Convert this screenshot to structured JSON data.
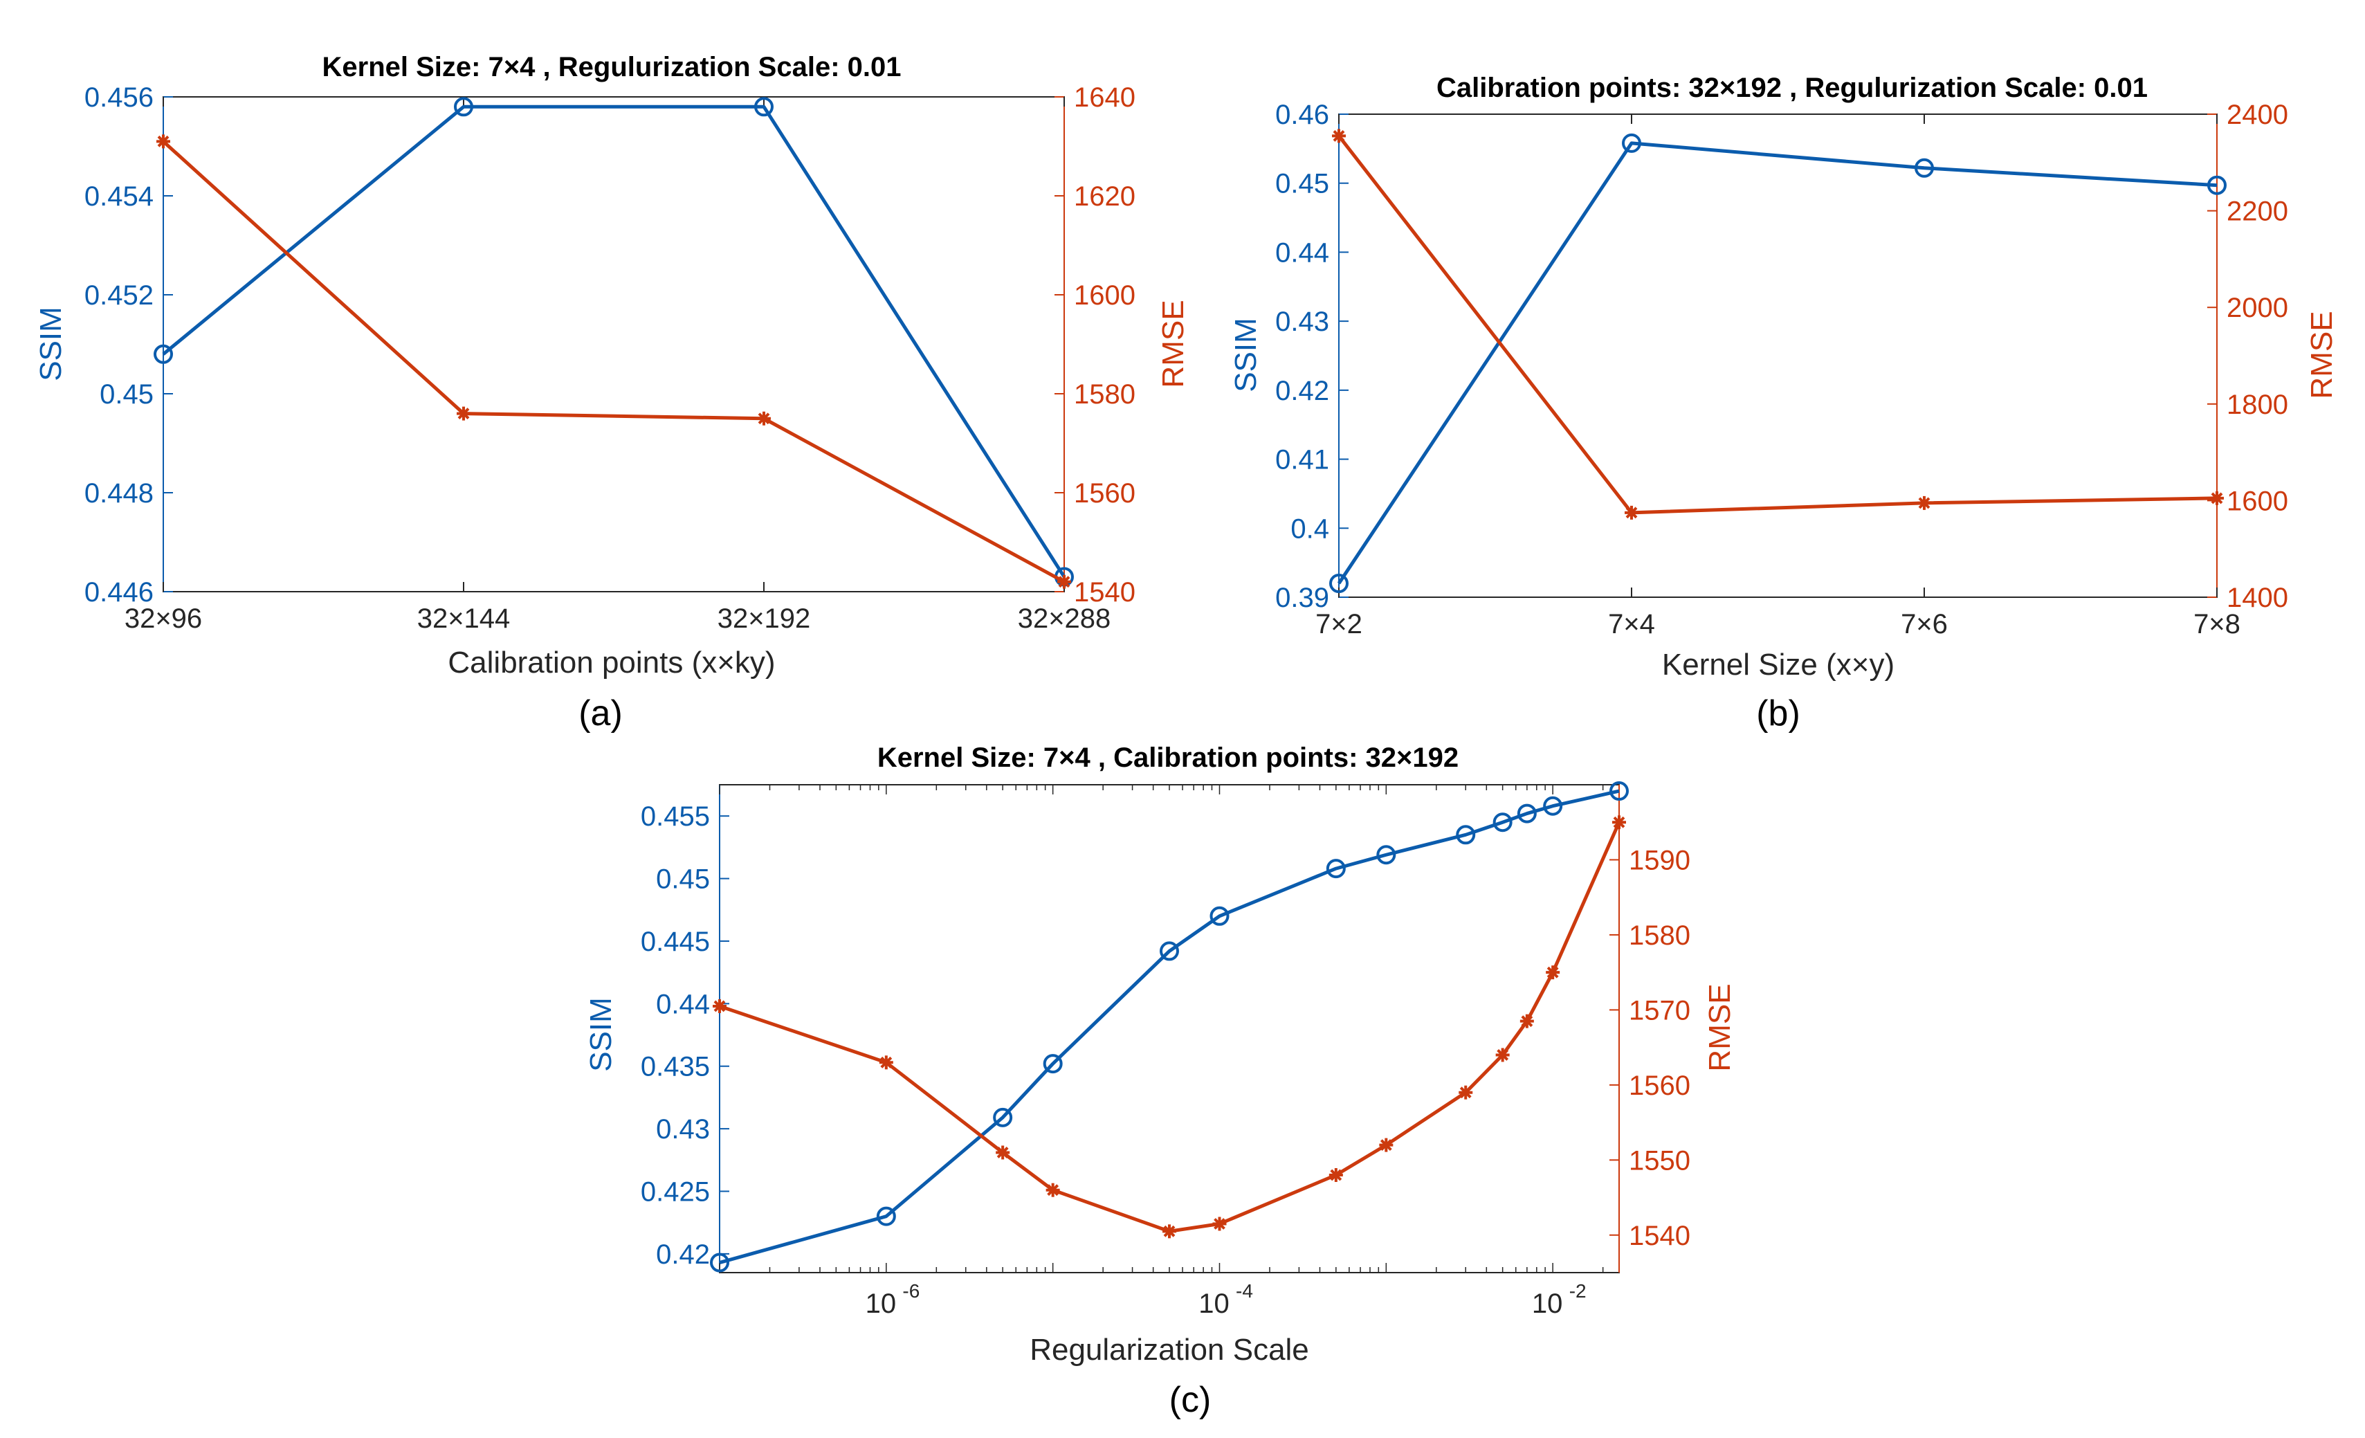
{
  "colors": {
    "ssim": "#0b5cad",
    "rmse": "#cc3a0e",
    "axis": "#262626"
  },
  "chart_data": [
    {
      "type": "line",
      "panel": "(a)",
      "title": "Kernel Size: 7×4 , Regulurization Scale: 0.01",
      "xlabel": "Calibration points (x×ky)",
      "ylabel_left": "SSIM",
      "ylabel_right": "RMSE",
      "categories": [
        "32×96",
        "32×144",
        "32×192",
        "32×288"
      ],
      "ylim_left": [
        0.446,
        0.456
      ],
      "ylim_right": [
        1540,
        1640
      ],
      "yticks_left": [
        "0.446",
        "0.448",
        "0.45",
        "0.452",
        "0.454",
        "0.456"
      ],
      "yticks_right": [
        "1540",
        "1560",
        "1580",
        "1600",
        "1620",
        "1640"
      ],
      "series": [
        {
          "name": "SSIM",
          "axis": "left",
          "marker": "circle",
          "values": [
            0.4508,
            0.4558,
            0.4558,
            0.4463
          ]
        },
        {
          "name": "RMSE",
          "axis": "right",
          "marker": "star",
          "values": [
            1631,
            1576,
            1575,
            1542
          ]
        }
      ]
    },
    {
      "type": "line",
      "panel": "(b)",
      "title": "Calibration points: 32×192 , Regulurization Scale: 0.01",
      "xlabel": "Kernel Size (x×y)",
      "ylabel_left": "SSIM",
      "ylabel_right": "RMSE",
      "categories": [
        "7×2",
        "7×4",
        "7×6",
        "7×8"
      ],
      "ylim_left": [
        0.39,
        0.46
      ],
      "ylim_right": [
        1400,
        2400
      ],
      "yticks_left": [
        "0.39",
        "0.4",
        "0.41",
        "0.42",
        "0.43",
        "0.44",
        "0.45",
        "0.46"
      ],
      "yticks_right": [
        "1400",
        "1600",
        "1800",
        "2000",
        "2200",
        "2400"
      ],
      "series": [
        {
          "name": "SSIM",
          "axis": "left",
          "marker": "circle",
          "values": [
            0.392,
            0.4558,
            0.4522,
            0.4497
          ]
        },
        {
          "name": "RMSE",
          "axis": "right",
          "marker": "star",
          "values": [
            2355,
            1575,
            1595,
            1605
          ]
        }
      ]
    },
    {
      "type": "line",
      "panel": "(c)",
      "title": "Kernel Size: 7×4 , Calibration points: 32×192",
      "xlabel": "Regularization Scale",
      "xscale": "log",
      "ylabel_left": "SSIM",
      "ylabel_right": "RMSE",
      "xlim": [
        1e-07,
        0.025
      ],
      "xticks": [
        {
          "base": "10",
          "exp": "-6",
          "value": 1e-06
        },
        {
          "base": "10",
          "exp": "-4",
          "value": 0.0001
        },
        {
          "base": "10",
          "exp": "-2",
          "value": 0.01
        }
      ],
      "ylim_left": [
        0.4185,
        0.4575
      ],
      "ylim_right": [
        1535,
        1600
      ],
      "yticks_left": [
        "0.42",
        "0.425",
        "0.43",
        "0.435",
        "0.44",
        "0.445",
        "0.45",
        "0.455"
      ],
      "yticks_right": [
        "1540",
        "1550",
        "1560",
        "1570",
        "1580",
        "1590"
      ],
      "x": [
        1e-07,
        1e-06,
        5e-06,
        1e-05,
        5e-05,
        0.0001,
        0.0005,
        0.001,
        0.003,
        0.005,
        0.007,
        0.01,
        0.025
      ],
      "series": [
        {
          "name": "SSIM",
          "axis": "left",
          "marker": "circle",
          "values": [
            0.4193,
            0.423,
            0.4309,
            0.4352,
            0.4442,
            0.447,
            0.4508,
            0.4519,
            0.4535,
            0.4545,
            0.4552,
            0.4558,
            0.457
          ]
        },
        {
          "name": "RMSE",
          "axis": "right",
          "marker": "star",
          "values": [
            1570.5,
            1563,
            1551,
            1546,
            1540.5,
            1541.5,
            1548,
            1552,
            1559,
            1564,
            1568.5,
            1575,
            1595
          ]
        }
      ]
    }
  ]
}
